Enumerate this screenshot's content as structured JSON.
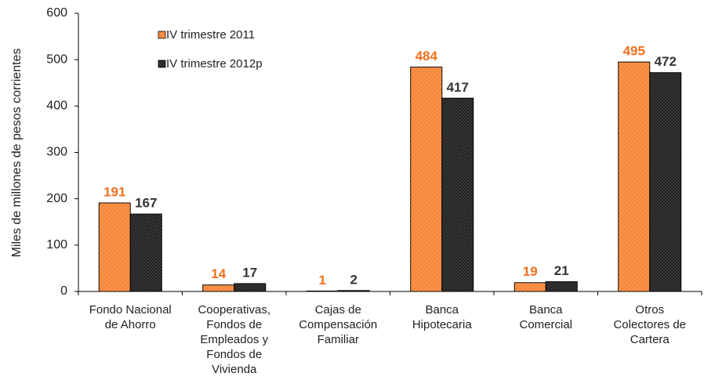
{
  "chart_data": {
    "type": "bar",
    "y_label": "Miles de millones de pesos corrientes",
    "categories": [
      "Fondo Nacional\nde Ahorro",
      "Cooperativas,\nFondos de\nEmpleados y\nFondos de\nVivienda",
      "Cajas de\nCompensación\nFamiliar",
      "Banca\nHipotecaria",
      "Banca\nComercial",
      "Otros\nColectores de\nCartera"
    ],
    "series": [
      {
        "name": "IV trimestre 2011",
        "color": "#f7883a",
        "label_color": "#f26f1c",
        "values": [
          191,
          14,
          1,
          484,
          19,
          495
        ]
      },
      {
        "name": "IV trimestre 2012p",
        "color": "#3a3a3a",
        "label_color": "#333333",
        "values": [
          167,
          17,
          2,
          417,
          21,
          472
        ]
      }
    ],
    "ylim": [
      0,
      600
    ],
    "yticks": [
      0,
      100,
      200,
      300,
      400,
      500,
      600
    ],
    "grid": false
  }
}
